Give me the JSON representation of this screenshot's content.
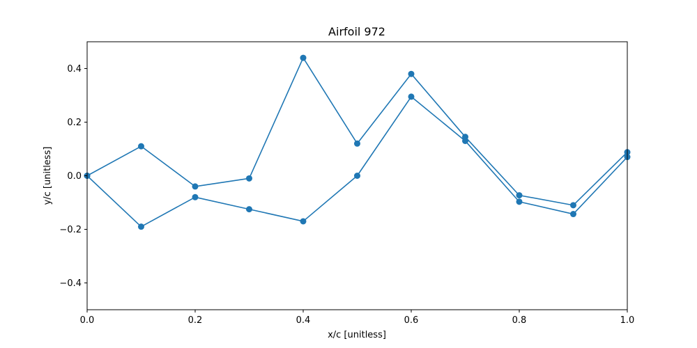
{
  "chart_data": {
    "type": "line",
    "title": "Airfoil 972",
    "xlabel": "x/c [unitless]",
    "ylabel": "y/c [unitless]",
    "xlim": [
      0.0,
      1.0
    ],
    "ylim": [
      -0.5,
      0.5
    ],
    "xticks": [
      0.0,
      0.2,
      0.4,
      0.6,
      0.8,
      1.0
    ],
    "xtick_labels": [
      "0.0",
      "0.2",
      "0.4",
      "0.6",
      "0.8",
      "1.0"
    ],
    "yticks": [
      -0.4,
      -0.2,
      0.0,
      0.2,
      0.4
    ],
    "ytick_labels": [
      "−0.4",
      "−0.2",
      "0.0",
      "0.2",
      "0.4"
    ],
    "grid": false,
    "legend": "none",
    "color": "#1f77b4",
    "series": [
      {
        "x": [
          0.0,
          0.1,
          0.2,
          0.3,
          0.4,
          0.5,
          0.6,
          0.7,
          0.8,
          0.9,
          1.0
        ],
        "values": [
          0.0,
          0.11,
          -0.04,
          -0.01,
          0.44,
          0.12,
          0.38,
          0.145,
          -0.073,
          -0.11,
          0.088
        ]
      },
      {
        "x": [
          0.0,
          0.1,
          0.2,
          0.3,
          0.4,
          0.5,
          0.6,
          0.7,
          0.8,
          0.9,
          1.0
        ],
        "values": [
          0.0,
          -0.19,
          -0.08,
          -0.125,
          -0.17,
          0.0,
          0.295,
          0.13,
          -0.097,
          -0.143,
          0.07
        ]
      }
    ]
  }
}
